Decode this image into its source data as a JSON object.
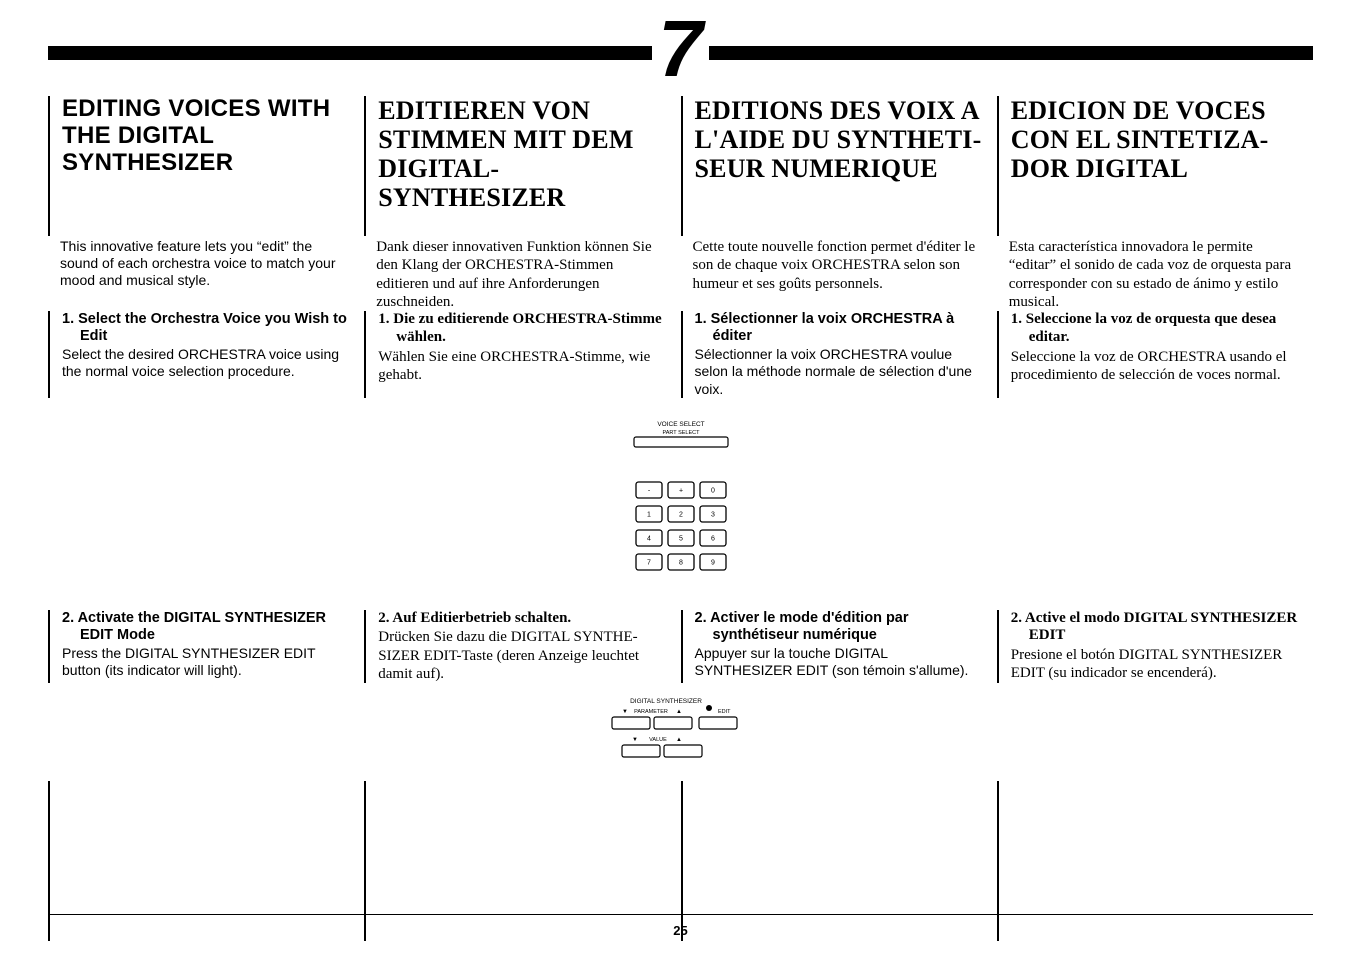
{
  "chapter_number": "7",
  "page_number": "25",
  "keypad": {
    "row0": [
      "-",
      "+",
      "0"
    ],
    "row1": [
      "1",
      "2",
      "3"
    ],
    "row2": [
      "4",
      "5",
      "6"
    ],
    "row3": [
      "7",
      "8",
      "9"
    ]
  },
  "voice_select": {
    "label_top": "VOICE SELECT",
    "label_sub": "PART SELECT"
  },
  "synth_panel": {
    "title": "DIGITAL SYNTHESIZER",
    "parameter_label": "PARAMETER",
    "value_label": "VALUE",
    "edit_label": "EDIT",
    "arrow_down": "▼",
    "arrow_up": "▲"
  },
  "columns": {
    "en": {
      "heading": "EDITING VOICES WITH THE DIGITAL SYNTHESIZER",
      "intro": "This innovative feature lets you “edit” the sound of each orchestra voice to match your mood and musical style.",
      "step1_title": "1. Select the Orchestra Voice you Wish to Edit",
      "step1_body": "Select the desired ORCHESTRA voice using the normal voice selection procedure.",
      "step2_title": "2. Activate the DIGITAL SYNTHESIZER EDIT Mode",
      "step2_body": "Press the DIGITAL SYNTHESIZER EDIT button (its indicator will light)."
    },
    "de": {
      "heading": "EDITIEREN VON STIMMEN MIT DEM DIGITAL-SYNTHESIZER",
      "intro": "Dank dieser innovativen Funktion können Sie den Klang der ORCHESTRA-Stimmen editieren und auf ihre Anforderungen zuschneiden.",
      "step1_title": "1. Die zu editierende ORCHESTRA-Stimme wählen.",
      "step1_body": "Wählen Sie eine ORCHESTRA-Stimme, wie gehabt.",
      "step2_title": "2. Auf Editierbetrieb schalten.",
      "step2_body": "Drücken Sie dazu die DIGITAL SYNTHE­SIZER EDIT-Taste (deren Anzeige leuchtet damit auf)."
    },
    "fr": {
      "heading": "EDITIONS DES VOIX A L'AIDE DU SYNTHETI­SEUR NUMERIQUE",
      "intro": "Cette toute nouvelle fonction permet d'éditer le son de chaque voix ORCHESTRA selon son humeur et ses goûts personnels.",
      "step1_title": "1. Sélectionner la voix ORCHESTRA à éditer",
      "step1_body": "Sélectionner la voix ORCHESTRA voulue selon la méthode normale de sélection d'une voix.",
      "step2_title": "2. Activer le mode d'édition par synthétiseur numérique",
      "step2_body": "Appuyer sur la touche DIGITAL SYNTHESIZER EDIT (son témoin s'allume)."
    },
    "es": {
      "heading": "EDICION DE VOCES CON EL SINTETIZA­DOR DIGITAL",
      "intro": "Esta característica innovadora le permite “editar” el sonido de cada voz de orquesta para corresponder con su estado de ánimo y estilo musical.",
      "step1_title": "1. Seleccione la voz de orquesta que desea editar.",
      "step1_body": "Seleccione la voz de ORCHESTRA usando el procedimiento de selección de voces normal.",
      "step2_title": "2. Active el modo DIGITAL SYNTHESIZER EDIT",
      "step2_body": "Presione el botón DIGITAL SYNTHESIZER EDIT (su indicador se encenderá)."
    }
  }
}
